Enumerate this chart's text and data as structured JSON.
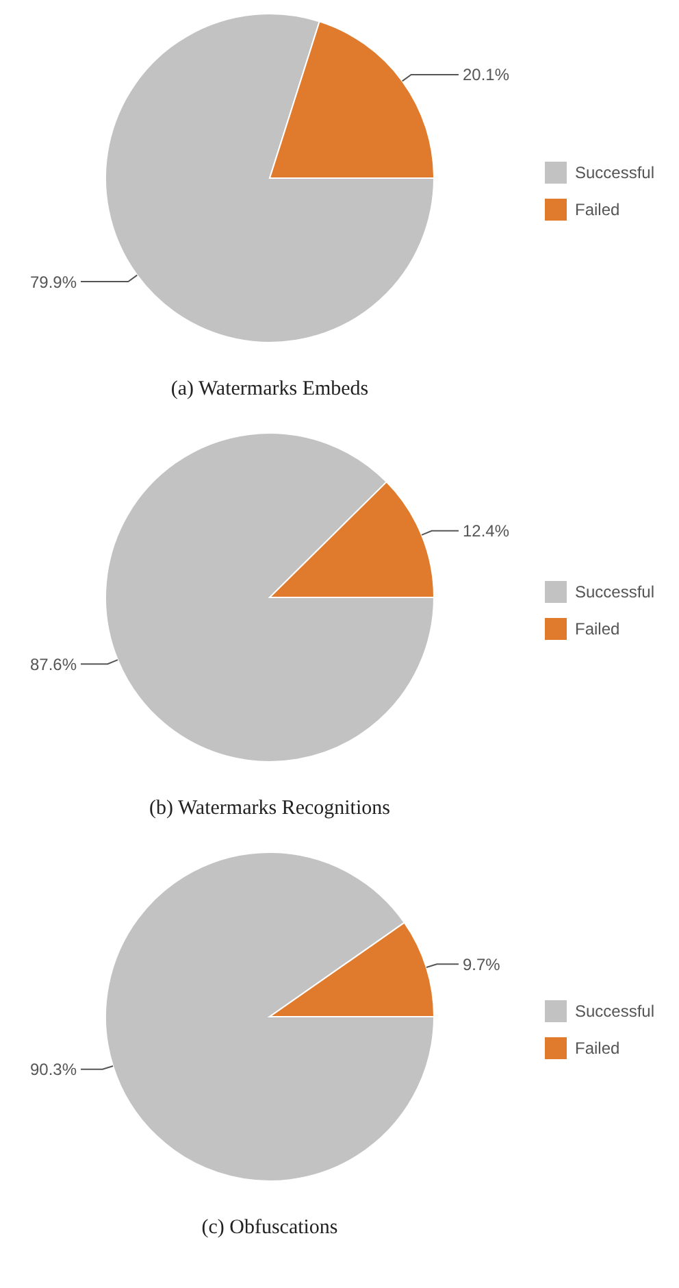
{
  "chart_data": [
    {
      "type": "pie",
      "title": "(a) Watermarks Embeds",
      "categories": [
        "Successful",
        "Failed"
      ],
      "values": [
        79.9,
        20.1
      ],
      "value_labels": [
        "79.9%",
        "20.1%"
      ],
      "colors": [
        "#c2c2c2",
        "#e07b2d"
      ],
      "legend": "right"
    },
    {
      "type": "pie",
      "title": "(b) Watermarks Recognitions",
      "categories": [
        "Successful",
        "Failed"
      ],
      "values": [
        87.6,
        12.4
      ],
      "value_labels": [
        "87.6%",
        "12.4%"
      ],
      "colors": [
        "#c2c2c2",
        "#e07b2d"
      ],
      "legend": "right"
    },
    {
      "type": "pie",
      "title": "(c) Obfuscations",
      "categories": [
        "Successful",
        "Failed"
      ],
      "values": [
        90.3,
        9.7
      ],
      "value_labels": [
        "90.3%",
        "9.7%"
      ],
      "colors": [
        "#c2c2c2",
        "#e07b2d"
      ],
      "legend": "right"
    }
  ]
}
